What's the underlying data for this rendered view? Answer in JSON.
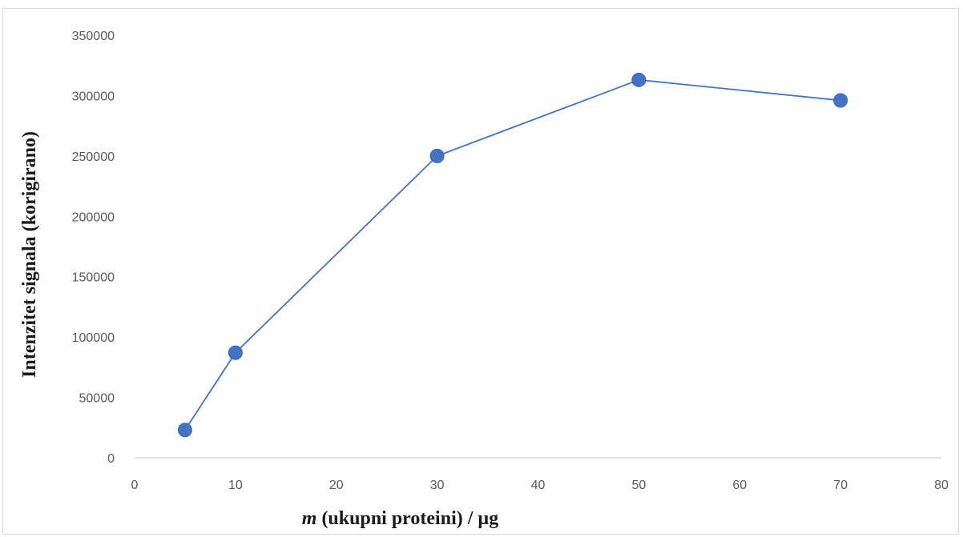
{
  "chart_data": {
    "type": "scatter",
    "title": "",
    "xlabel_italic": "m",
    "xlabel_rest": " (ukupni proteini) / µg",
    "ylabel": "Intenzitet signala (korigirano)",
    "xlim": [
      0,
      80
    ],
    "ylim": [
      0,
      350000
    ],
    "xticks": [
      0,
      10,
      20,
      30,
      40,
      50,
      60,
      70,
      80
    ],
    "yticks": [
      0,
      50000,
      100000,
      150000,
      200000,
      250000,
      300000,
      350000
    ],
    "grid": false,
    "legend": "none",
    "series": [
      {
        "x": [
          5,
          10,
          30,
          50,
          70
        ],
        "y": [
          23000,
          87000,
          250000,
          313000,
          296000
        ],
        "color": "#4472c4",
        "marker": "circle",
        "line": "straight"
      }
    ]
  }
}
